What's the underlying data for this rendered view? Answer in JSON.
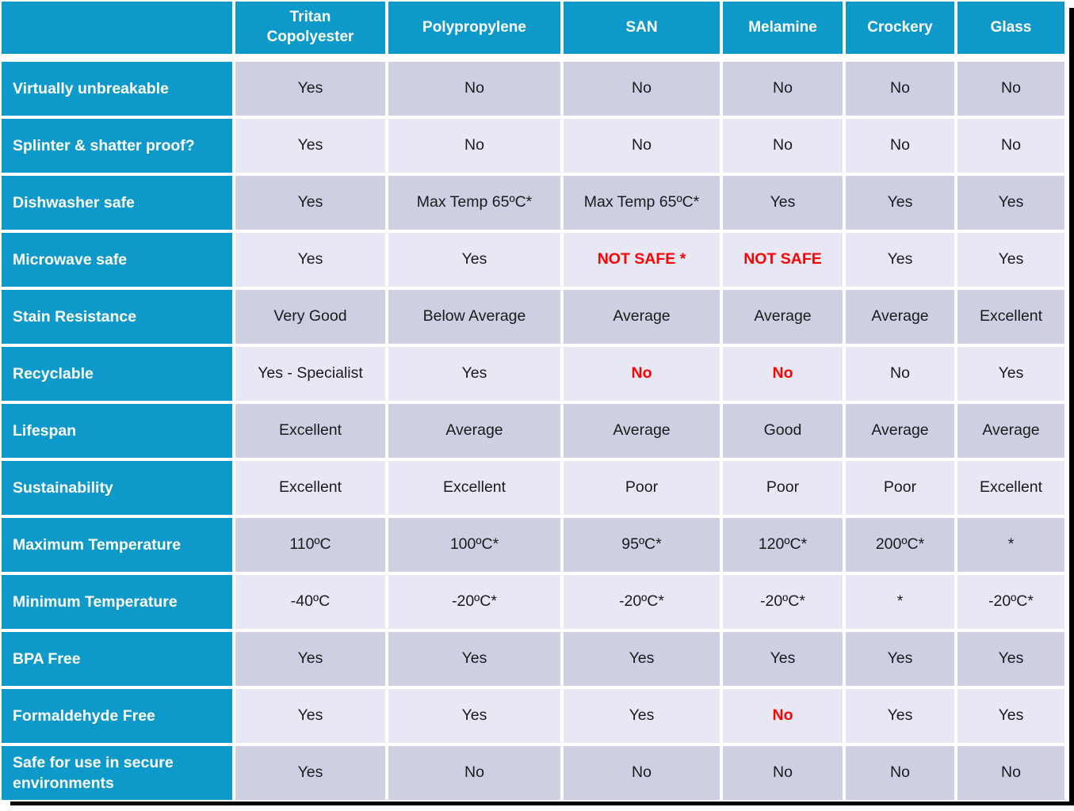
{
  "colors": {
    "header_bg": "#0d9aca",
    "row_dark": "#cdcfe3",
    "row_light": "#e7e8f3",
    "label_text": "#ffffff",
    "cell_text": "#1b1b1b",
    "alert_text": "#ff0000"
  },
  "table": {
    "corner_label": "",
    "columns": [
      "Tritan Copolyester",
      "Polypropylene",
      "SAN",
      "Melamine",
      "Crockery",
      "Glass"
    ],
    "rows": [
      {
        "label": "Virtually unbreakable",
        "cells": [
          {
            "text": "Yes"
          },
          {
            "text": "No"
          },
          {
            "text": "No"
          },
          {
            "text": "No"
          },
          {
            "text": "No"
          },
          {
            "text": "No"
          }
        ]
      },
      {
        "label": "Splinter & shatter proof?",
        "cells": [
          {
            "text": "Yes"
          },
          {
            "text": "No"
          },
          {
            "text": "No"
          },
          {
            "text": "No"
          },
          {
            "text": "No"
          },
          {
            "text": "No"
          }
        ]
      },
      {
        "label": "Dishwasher safe",
        "cells": [
          {
            "text": "Yes"
          },
          {
            "text": "Max Temp 65ºC*"
          },
          {
            "text": "Max Temp 65ºC*"
          },
          {
            "text": "Yes"
          },
          {
            "text": "Yes"
          },
          {
            "text": "Yes"
          }
        ]
      },
      {
        "label": "Microwave safe",
        "cells": [
          {
            "text": "Yes"
          },
          {
            "text": "Yes"
          },
          {
            "text": "NOT SAFE *",
            "red": true
          },
          {
            "text": "NOT SAFE",
            "red": true
          },
          {
            "text": "Yes"
          },
          {
            "text": "Yes"
          }
        ]
      },
      {
        "label": "Stain Resistance",
        "cells": [
          {
            "text": "Very Good"
          },
          {
            "text": "Below Average"
          },
          {
            "text": "Average"
          },
          {
            "text": "Average"
          },
          {
            "text": "Average"
          },
          {
            "text": "Excellent"
          }
        ]
      },
      {
        "label": "Recyclable",
        "cells": [
          {
            "text": "Yes - Specialist"
          },
          {
            "text": "Yes"
          },
          {
            "text": "No",
            "red": true
          },
          {
            "text": "No",
            "red": true
          },
          {
            "text": "No"
          },
          {
            "text": "Yes"
          }
        ]
      },
      {
        "label": "Lifespan",
        "cells": [
          {
            "text": "Excellent"
          },
          {
            "text": "Average"
          },
          {
            "text": "Average"
          },
          {
            "text": "Good"
          },
          {
            "text": "Average"
          },
          {
            "text": "Average"
          }
        ]
      },
      {
        "label": "Sustainability",
        "cells": [
          {
            "text": "Excellent"
          },
          {
            "text": "Excellent"
          },
          {
            "text": "Poor"
          },
          {
            "text": "Poor"
          },
          {
            "text": "Poor"
          },
          {
            "text": "Excellent"
          }
        ]
      },
      {
        "label": "Maximum Temperature",
        "cells": [
          {
            "text": "110ºC"
          },
          {
            "text": "100ºC*"
          },
          {
            "text": "95ºC*"
          },
          {
            "text": "120ºC*"
          },
          {
            "text": "200ºC*"
          },
          {
            "text": "*"
          }
        ]
      },
      {
        "label": "Minimum Temperature",
        "cells": [
          {
            "text": "-40ºC"
          },
          {
            "text": "-20ºC*"
          },
          {
            "text": "-20ºC*"
          },
          {
            "text": "-20ºC*"
          },
          {
            "text": "*"
          },
          {
            "text": "-20ºC*"
          }
        ]
      },
      {
        "label": "BPA Free",
        "cells": [
          {
            "text": "Yes"
          },
          {
            "text": "Yes"
          },
          {
            "text": "Yes"
          },
          {
            "text": "Yes"
          },
          {
            "text": "Yes"
          },
          {
            "text": "Yes"
          }
        ]
      },
      {
        "label": "Formaldehyde Free",
        "cells": [
          {
            "text": "Yes"
          },
          {
            "text": "Yes"
          },
          {
            "text": "Yes"
          },
          {
            "text": "No",
            "red": true
          },
          {
            "text": "Yes"
          },
          {
            "text": "Yes"
          }
        ]
      },
      {
        "label": "Safe for use in secure environments",
        "cells": [
          {
            "text": "Yes"
          },
          {
            "text": "No"
          },
          {
            "text": "No"
          },
          {
            "text": "No"
          },
          {
            "text": "No"
          },
          {
            "text": "No"
          }
        ]
      }
    ]
  }
}
